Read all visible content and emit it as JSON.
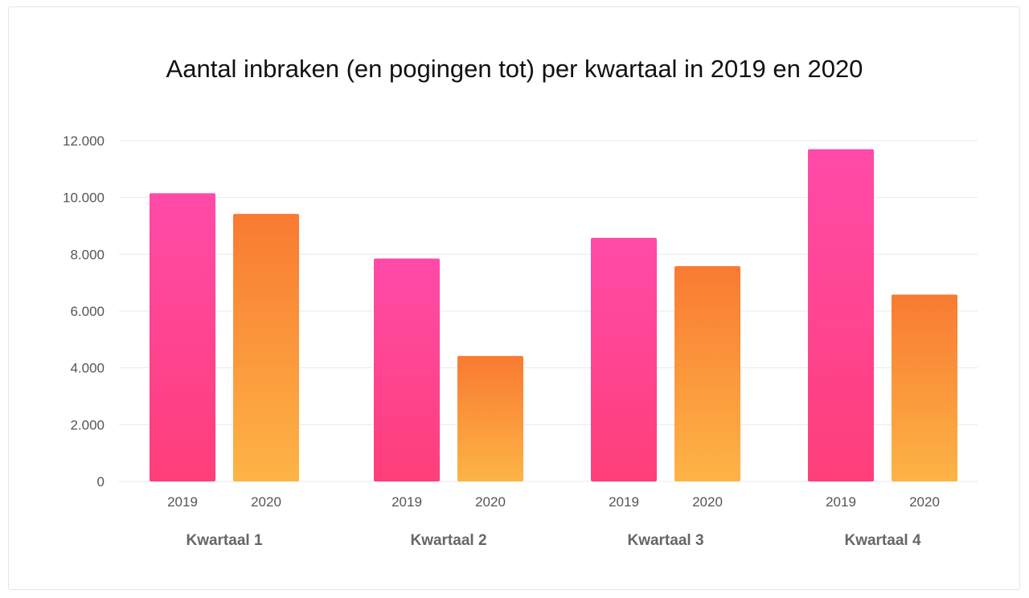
{
  "chart_data": {
    "type": "bar",
    "title": "Aantal inbraken (en pogingen tot) per kwartaal in 2019 en 2020",
    "xlabel": "",
    "ylabel": "",
    "ylim": [
      0,
      12000
    ],
    "yticks": [
      0,
      2000,
      4000,
      6000,
      8000,
      10000,
      12000
    ],
    "ytick_labels": [
      "0",
      "2.000",
      "4.000",
      "6.000",
      "8.000",
      "10.000",
      "12.000"
    ],
    "categories": [
      "Kwartaal 1",
      "Kwartaal 2",
      "Kwartaal 3",
      "Kwartaal 4"
    ],
    "series": [
      {
        "name": "2019",
        "values": [
          10150,
          7850,
          8580,
          11700
        ]
      },
      {
        "name": "2020",
        "values": [
          9420,
          4420,
          7580,
          6580
        ]
      }
    ],
    "grid": true,
    "legend": "none"
  },
  "colors": {
    "series_2019_top": "#ff4aa8",
    "series_2019_bottom": "#ff3f7a",
    "series_2020_top": "#f97a32",
    "series_2020_bottom": "#fdb446",
    "grid": "#e9e9e9"
  }
}
